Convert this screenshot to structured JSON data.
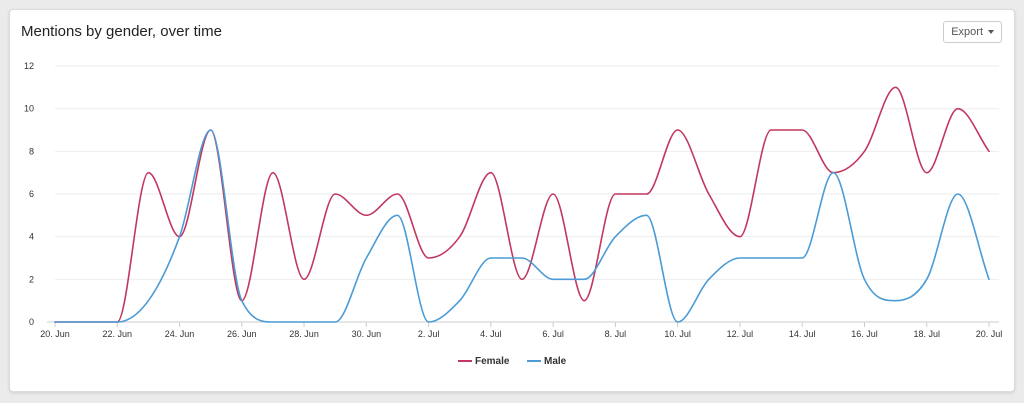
{
  "card": {
    "title": "Mentions by gender, over time",
    "export_label": "Export"
  },
  "colors": {
    "female": "#c2375f",
    "male": "#4a9bd6",
    "grid": "#eeeeee",
    "axis": "#cccccc"
  },
  "chart_data": {
    "type": "line",
    "title": "Mentions by gender, over time",
    "xlabel": "",
    "ylabel": "",
    "x": [
      "20. Jun",
      "21. Jun",
      "22. Jun",
      "23. Jun",
      "24. Jun",
      "25. Jun",
      "26. Jun",
      "27. Jun",
      "28. Jun",
      "29. Jun",
      "30. Jun",
      "1. Jul",
      "2. Jul",
      "3. Jul",
      "4. Jul",
      "5. Jul",
      "6. Jul",
      "7. Jul",
      "8. Jul",
      "9. Jul",
      "10. Jul",
      "11. Jul",
      "12. Jul",
      "13. Jul",
      "14. Jul",
      "15. Jul",
      "16. Jul",
      "17. Jul",
      "18. Jul",
      "19. Jul",
      "20. Jul"
    ],
    "x_tick_labels": [
      "20. Jun",
      "22. Jun",
      "24. Jun",
      "26. Jun",
      "28. Jun",
      "30. Jun",
      "2. Jul",
      "4. Jul",
      "6. Jul",
      "8. Jul",
      "10. Jul",
      "12. Jul",
      "14. Jul",
      "16. Jul",
      "18. Jul",
      "20. Jul"
    ],
    "y_ticks": [
      0,
      2,
      4,
      6,
      8,
      10,
      12
    ],
    "ylim": [
      0,
      12
    ],
    "grid": true,
    "legend_position": "bottom-center",
    "series": [
      {
        "name": "Female",
        "color_key": "female",
        "values": [
          0,
          0,
          0,
          7,
          4,
          9,
          1,
          7,
          2,
          6,
          5,
          6,
          3,
          4,
          7,
          2,
          6,
          1,
          6,
          6,
          9,
          6,
          4,
          9,
          9,
          7,
          8,
          11,
          7,
          10,
          8
        ]
      },
      {
        "name": "Male",
        "color_key": "male",
        "values": [
          0,
          0,
          0,
          1,
          4,
          9,
          1,
          0,
          0,
          0,
          3,
          5,
          0,
          1,
          3,
          3,
          2,
          2,
          4,
          5,
          0,
          2,
          3,
          3,
          3,
          7,
          2,
          1,
          2,
          6,
          2
        ]
      }
    ]
  }
}
